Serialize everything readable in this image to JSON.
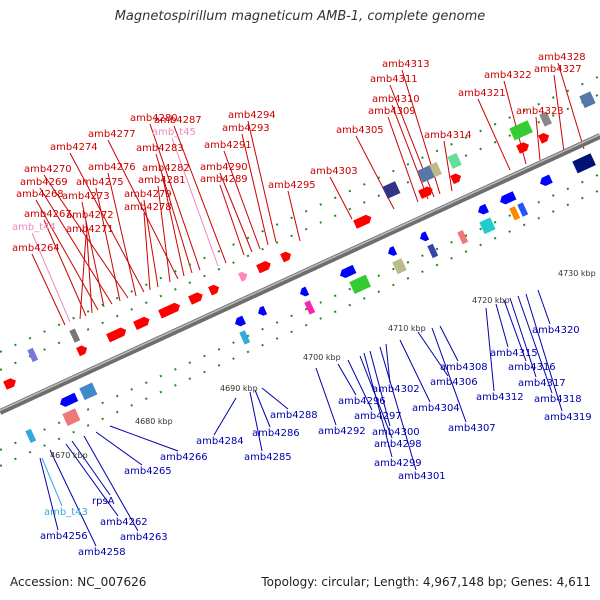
{
  "title": "Magnetospirillum magneticum AMB-1, complete genome",
  "accession": "Accession: NC_007626",
  "topology": "Topology: circular; Length: 4,967,148 bp; Genes: 4,611",
  "colors": {
    "top_label": "#cc0000",
    "top_trna_label": "#ee88bb",
    "bottom_label": "#0000aa",
    "bottom_trna_label": "#33aadd",
    "top_gene": "#ff0000",
    "bottom_gene": "#0000ff",
    "backbone": "#888888",
    "tick": "#228822"
  },
  "kbp_labels": [
    "4670 kbp",
    "4680 kbp",
    "4690 kbp",
    "4700 kbp",
    "4710 kbp",
    "4720 kbp",
    "4730 kbp"
  ],
  "top_labels": [
    "amb4264",
    "amb_t44",
    "amb4271",
    "amb4267",
    "amb4272",
    "amb4268",
    "amb4273",
    "amb4269",
    "amb4275",
    "amb4270",
    "amb4276",
    "amb4274",
    "amb4278",
    "amb4279",
    "amb4281",
    "amb4277",
    "amb4282",
    "amb4283",
    "amb4280",
    "amb_t45",
    "amb4287",
    "amb4289",
    "amb4290",
    "amb4291",
    "amb4293",
    "amb4294",
    "amb4295",
    "amb4303",
    "amb4305",
    "amb4309",
    "amb4310",
    "amb4311",
    "amb4313",
    "amb4314",
    "amb4321",
    "amb4322",
    "amb4323",
    "amb4327",
    "amb4328"
  ],
  "bottom_labels": [
    "amb4256",
    "amb_t43",
    "amb4258",
    "amb4262",
    "rpsA",
    "amb4263",
    "amb4265",
    "amb4266",
    "amb4284",
    "amb4285",
    "amb4286",
    "amb4288",
    "amb4292",
    "amb4296",
    "amb4297",
    "amb4298",
    "amb4299",
    "amb4300",
    "amb4301",
    "amb4302",
    "amb4304",
    "amb4306",
    "amb4307",
    "amb4308",
    "amb4312",
    "amb4315",
    "amb4316",
    "amb4317",
    "amb4318",
    "amb4319",
    "amb4320"
  ]
}
